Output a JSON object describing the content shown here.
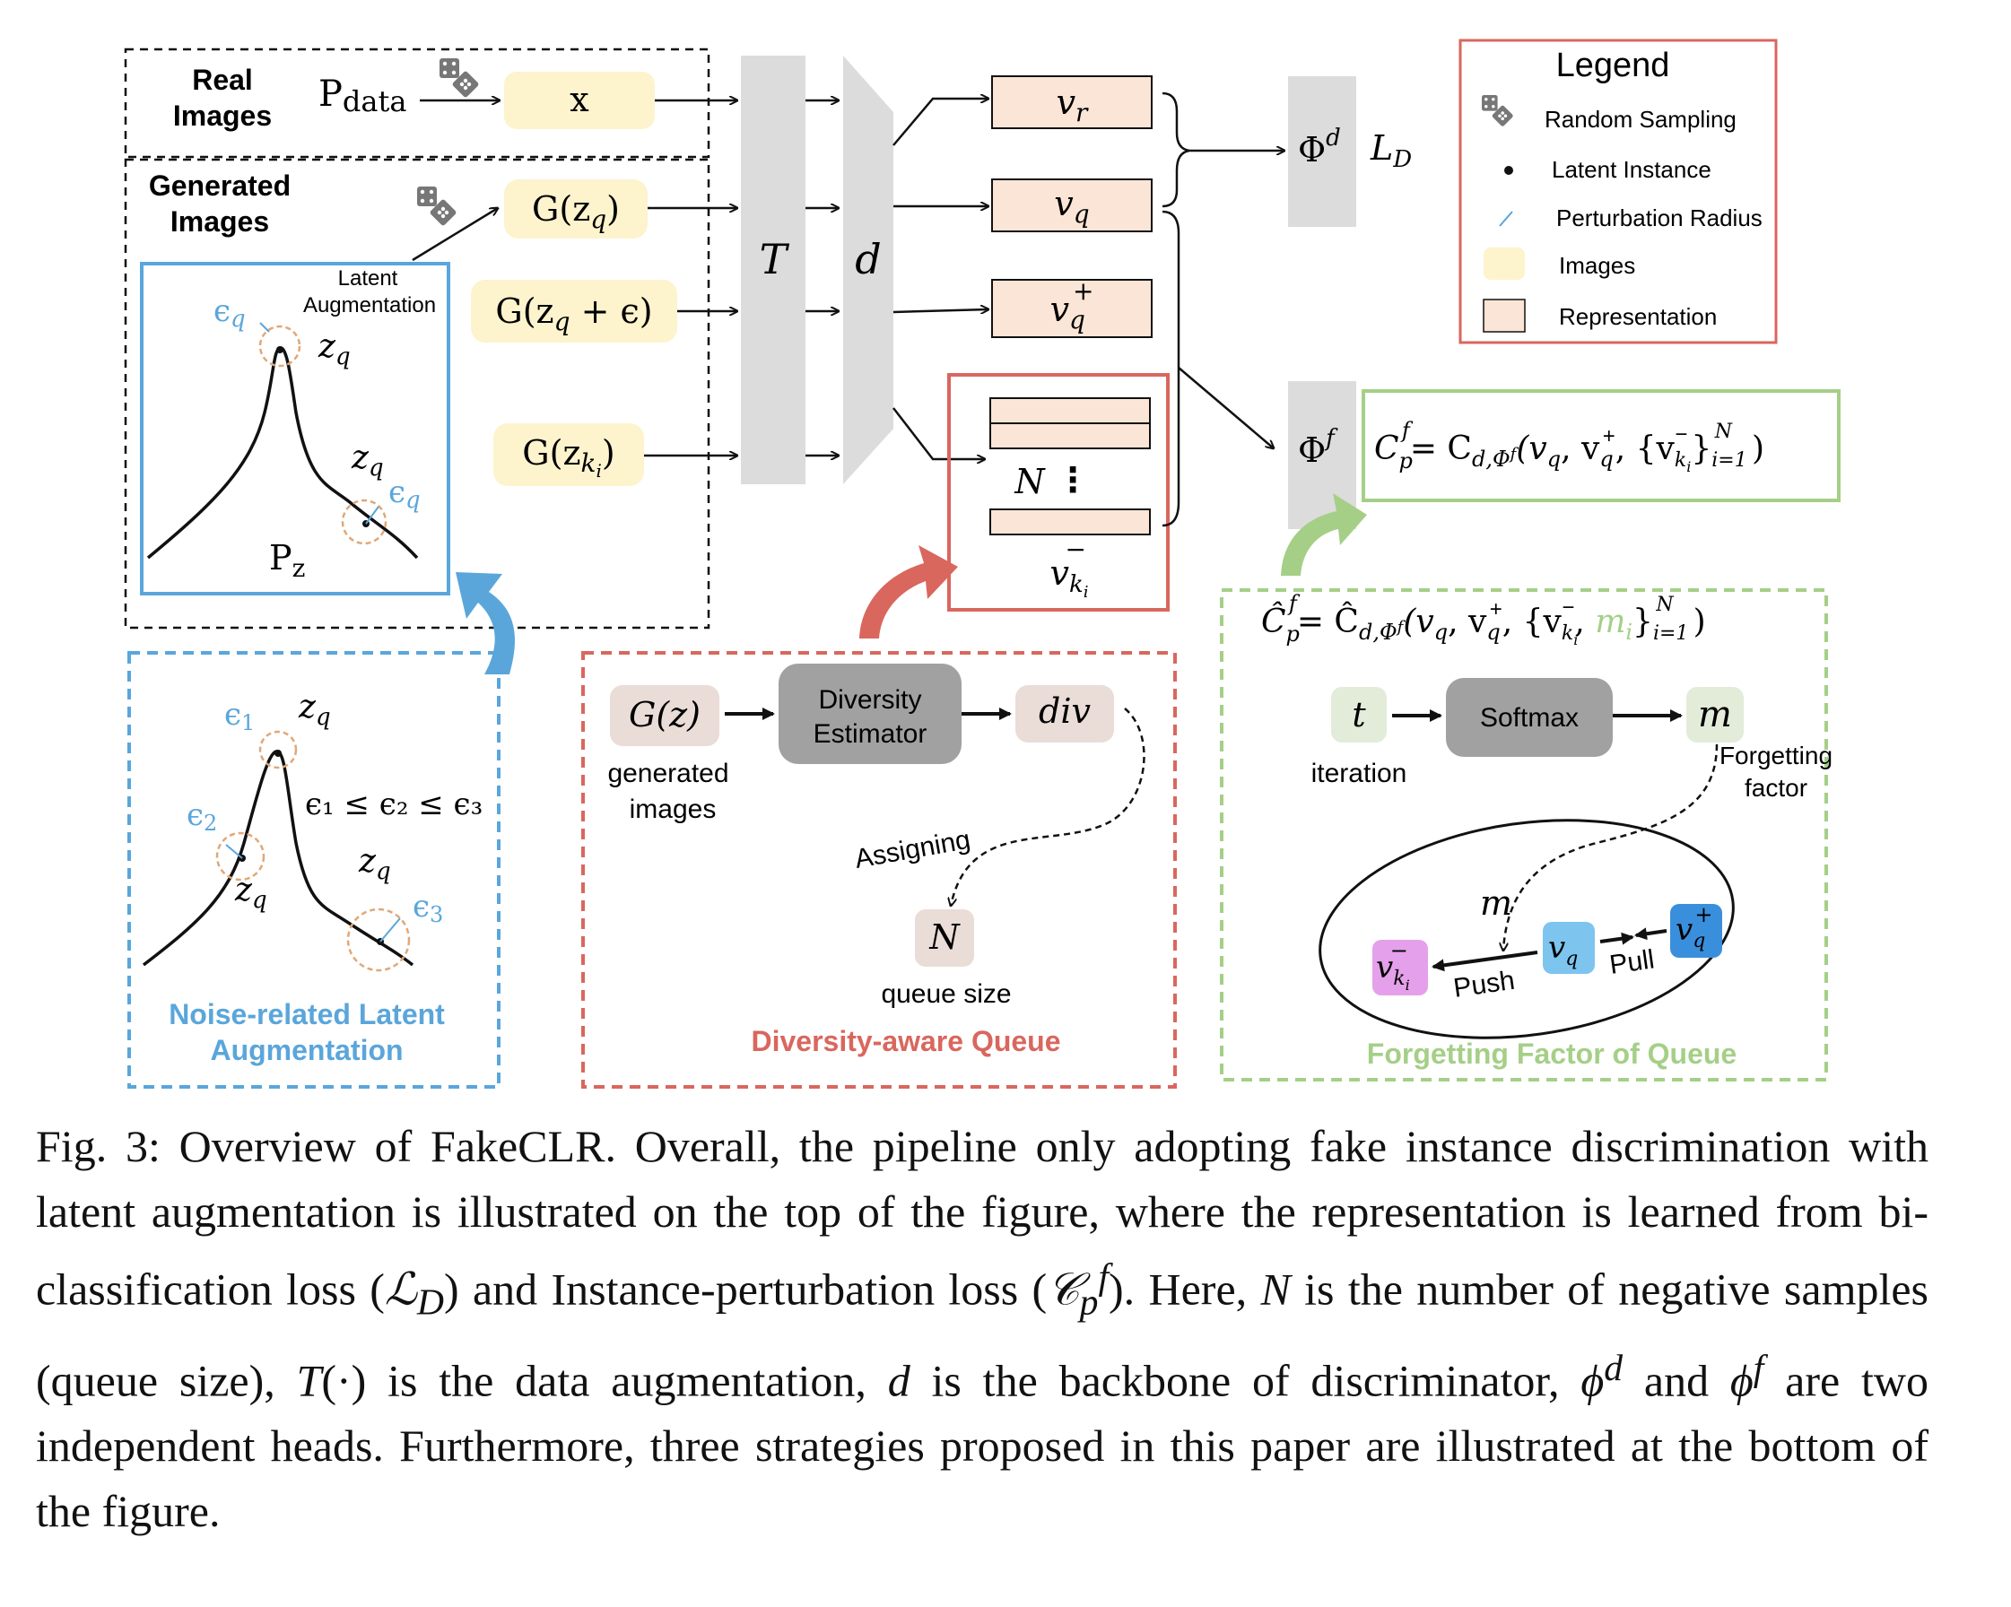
{
  "top": {
    "real_images_line1": "Real",
    "real_images_line2": "Images",
    "p_data": "P",
    "p_data_sub": "data",
    "x": "x",
    "generated_images_line1": "Generated",
    "generated_images_line2": "Images",
    "latent_aug_line1": "Latent",
    "latent_aug_line2": "Augmentation",
    "pz": "P",
    "pz_sub": "z",
    "eps_q": "ϵ",
    "eps_sub": "q",
    "z_q": "z",
    "z_sub": "q",
    "gen_zq": "G(z",
    "gen_zq_eps": "G(z",
    "gen_zq_eps_tail": " + ϵ)",
    "gen_zki": "G(z",
    "gen_zki_sub": "k",
    "gen_zki_subsub": "i",
    "T": "T",
    "d": "d",
    "v_r": "v",
    "v_r_sub": "r",
    "v_q": "v",
    "v_q_sub": "q",
    "v_q_plus_sup": "+",
    "N": "N",
    "v_ki_sup": "−",
    "phi_d": "Φ",
    "phi_d_sup": "d",
    "L_D": "L",
    "L_D_sub": "D",
    "phi_f": "Φ",
    "phi_f_sup": "f",
    "cpf_formula": "= C",
    "cpf_formula_rest": "(v",
    "cpf_formula_args": ", {v",
    "cpf_formula_end": "}"
  },
  "legend": {
    "title": "Legend",
    "items": [
      "Random Sampling",
      "Latent Instance",
      "Perturbation Radius",
      "Images",
      "Representation"
    ]
  },
  "panels": {
    "noise": {
      "title_line1": "Noise-related Latent",
      "title_line2": "Augmentation",
      "eps1": "ϵ",
      "eps2": "ϵ",
      "eps3": "ϵ",
      "sub1": "1",
      "sub2": "2",
      "sub3": "3",
      "ineq": "ϵ₁ ≤ ϵ₂ ≤ ϵ₃"
    },
    "diversity": {
      "title": "Diversity-aware Queue",
      "gz": "G(z)",
      "gen_line1": "generated",
      "gen_line2": "images",
      "estimator_line1": "Diversity",
      "estimator_line2": "Estimator",
      "div": "div",
      "assigning": "Assigning",
      "N": "N",
      "queue_size": "queue size"
    },
    "forgetting": {
      "title": "Forgetting Factor of Queue",
      "t": "t",
      "iteration": "iteration",
      "softmax": "Softmax",
      "m": "m",
      "factor_line1": "Forgetting",
      "factor_line2": "factor",
      "push": "Push",
      "pull": "Pull",
      "m_i": "m"
    }
  },
  "caption": {
    "fig_label": "Fig. 3:",
    "p1": " Overview of FakeCLR. Overall, the pipeline only adopting fake instance discrimination with latent augmentation is illustrated on the top of the figure, where the representation is learned from bi-classification loss (",
    "LD": "ℒ",
    "LD_sub": "D",
    "p2": ") and Instance-perturbation loss (",
    "Cpf": "𝒞",
    "p3": "). Here, ",
    "N": "N",
    "p4": " is the number of negative samples (queue size), ",
    "T": "T",
    "p5": "(·) is the data augmentation, ",
    "d": "d",
    "p6": " is the backbone of discriminator, ",
    "phi": "ϕ",
    "p7": " and ",
    "p8": " are two independent heads. Furthermore, three strategies proposed in this paper are illustrated at the bottom of the figure."
  },
  "colors": {
    "image_fill": "#fdf3cd",
    "rep_fill": "#fbe5d6",
    "blue": "#5aa6db",
    "red": "#d9675e",
    "green": "#a5cf87",
    "gray": "#dcdcdc",
    "dark_gray": "#a1a1a1"
  }
}
